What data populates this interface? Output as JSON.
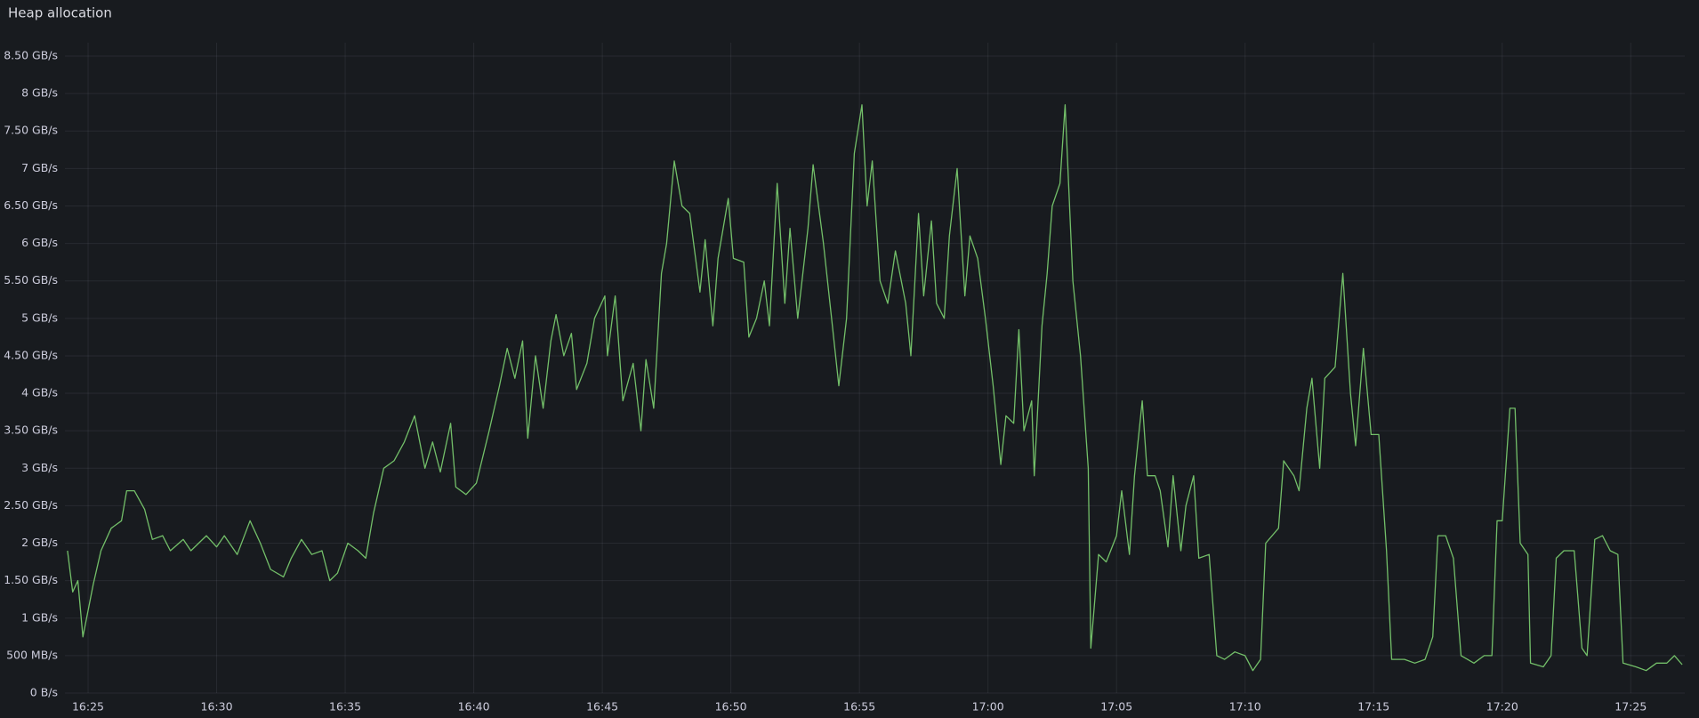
{
  "chart_data": {
    "type": "line",
    "title": "Heap allocation",
    "color": "#73bf69",
    "grid": true,
    "xlim": [
      984.1,
      1047.1
    ],
    "xticks": [
      {
        "value": 985,
        "label": "16:25"
      },
      {
        "value": 990,
        "label": "16:30"
      },
      {
        "value": 995,
        "label": "16:35"
      },
      {
        "value": 1000,
        "label": "16:40"
      },
      {
        "value": 1005,
        "label": "16:45"
      },
      {
        "value": 1010,
        "label": "16:50"
      },
      {
        "value": 1015,
        "label": "16:55"
      },
      {
        "value": 1020,
        "label": "17:00"
      },
      {
        "value": 1025,
        "label": "17:05"
      },
      {
        "value": 1030,
        "label": "17:10"
      },
      {
        "value": 1035,
        "label": "17:15"
      },
      {
        "value": 1040,
        "label": "17:20"
      },
      {
        "value": 1045,
        "label": "17:25"
      }
    ],
    "ylim": [
      0,
      8.7
    ],
    "yticks": [
      {
        "value": 0,
        "label": "0 B/s"
      },
      {
        "value": 0.5,
        "label": "500 MB/s"
      },
      {
        "value": 1,
        "label": "1 GB/s"
      },
      {
        "value": 1.5,
        "label": "1.50 GB/s"
      },
      {
        "value": 2,
        "label": "2 GB/s"
      },
      {
        "value": 2.5,
        "label": "2.50 GB/s"
      },
      {
        "value": 3,
        "label": "3 GB/s"
      },
      {
        "value": 3.5,
        "label": "3.50 GB/s"
      },
      {
        "value": 4,
        "label": "4 GB/s"
      },
      {
        "value": 4.5,
        "label": "4.50 GB/s"
      },
      {
        "value": 5,
        "label": "5 GB/s"
      },
      {
        "value": 5.5,
        "label": "5.50 GB/s"
      },
      {
        "value": 6,
        "label": "6 GB/s"
      },
      {
        "value": 6.5,
        "label": "6.50 GB/s"
      },
      {
        "value": 7,
        "label": "7 GB/s"
      },
      {
        "value": 7.5,
        "label": "7.50 GB/s"
      },
      {
        "value": 8,
        "label": "8 GB/s"
      },
      {
        "value": 8.5,
        "label": "8.50 GB/s"
      }
    ],
    "x": [
      984.2,
      984.4,
      984.6,
      984.8,
      985.2,
      985.5,
      985.9,
      986.3,
      986.5,
      986.8,
      987.2,
      987.5,
      987.9,
      988.2,
      988.7,
      989.0,
      989.6,
      990.0,
      990.3,
      990.8,
      991.3,
      991.7,
      992.1,
      992.6,
      992.9,
      993.3,
      993.7,
      994.1,
      994.4,
      994.7,
      995.1,
      995.5,
      995.8,
      996.1,
      996.5,
      996.9,
      997.3,
      997.7,
      998.1,
      998.4,
      998.7,
      999.1,
      999.3,
      999.7,
      1000.1,
      1000.6,
      1001.0,
      1001.3,
      1001.6,
      1001.9,
      1002.1,
      1002.4,
      1002.7,
      1003.0,
      1003.2,
      1003.5,
      1003.8,
      1004.0,
      1004.4,
      1004.7,
      1005.1,
      1005.2,
      1005.5,
      1005.8,
      1006.2,
      1006.5,
      1006.7,
      1007.0,
      1007.3,
      1007.5,
      1007.8,
      1008.1,
      1008.4,
      1008.8,
      1009.0,
      1009.3,
      1009.5,
      1009.9,
      1010.1,
      1010.5,
      1010.7,
      1011.0,
      1011.3,
      1011.5,
      1011.8,
      1012.1,
      1012.3,
      1012.6,
      1013.0,
      1013.2,
      1013.6,
      1013.9,
      1014.2,
      1014.5,
      1014.8,
      1015.1,
      1015.3,
      1015.5,
      1015.8,
      1016.1,
      1016.4,
      1016.8,
      1017.0,
      1017.3,
      1017.5,
      1017.8,
      1018.0,
      1018.3,
      1018.5,
      1018.8,
      1019.1,
      1019.3,
      1019.6,
      1019.9,
      1020.2,
      1020.5,
      1020.7,
      1021.0,
      1021.2,
      1021.4,
      1021.7,
      1021.8,
      1022.1,
      1022.3,
      1022.5,
      1022.8,
      1023.0,
      1023.3,
      1023.6,
      1023.9,
      1024.0,
      1024.3,
      1024.6,
      1025.0,
      1025.2,
      1025.5,
      1025.7,
      1026.0,
      1026.2,
      1026.5,
      1026.7,
      1027.0,
      1027.2,
      1027.5,
      1027.7,
      1028.0,
      1028.2,
      1028.6,
      1028.9,
      1029.2,
      1029.6,
      1030.0,
      1030.3,
      1030.6,
      1030.8,
      1031.3,
      1031.5,
      1031.9,
      1032.1,
      1032.4,
      1032.6,
      1032.9,
      1033.1,
      1033.5,
      1033.8,
      1034.1,
      1034.3,
      1034.6,
      1034.9,
      1035.2,
      1035.5,
      1035.7,
      1036.2,
      1036.6,
      1037.0,
      1037.3,
      1037.5,
      1037.8,
      1038.1,
      1038.4,
      1038.9,
      1039.3,
      1039.6,
      1039.8,
      1040.0,
      1040.3,
      1040.5,
      1040.7,
      1041.0,
      1041.1,
      1041.6,
      1041.9,
      1042.1,
      1042.4,
      1042.8,
      1043.1,
      1043.3,
      1043.6,
      1043.9,
      1044.2,
      1044.5,
      1044.7,
      1045.2,
      1045.6,
      1046.0,
      1046.4,
      1046.7,
      1047.0
    ],
    "values": [
      1.9,
      1.35,
      1.5,
      0.75,
      1.45,
      1.9,
      2.2,
      2.3,
      2.7,
      2.7,
      2.45,
      2.05,
      2.1,
      1.9,
      2.05,
      1.9,
      2.1,
      1.95,
      2.1,
      1.85,
      2.3,
      2.0,
      1.65,
      1.55,
      1.8,
      2.05,
      1.85,
      1.9,
      1.5,
      1.6,
      2.0,
      1.9,
      1.8,
      2.4,
      3.0,
      3.1,
      3.35,
      3.7,
      3.0,
      3.35,
      2.95,
      3.6,
      2.75,
      2.65,
      2.8,
      3.5,
      4.1,
      4.6,
      4.2,
      4.7,
      3.4,
      4.5,
      3.8,
      4.7,
      5.05,
      4.5,
      4.8,
      4.05,
      4.4,
      5.0,
      5.3,
      4.5,
      5.3,
      3.9,
      4.4,
      3.5,
      4.45,
      3.8,
      5.6,
      6.0,
      7.1,
      6.5,
      6.4,
      5.35,
      6.05,
      4.9,
      5.8,
      6.6,
      5.8,
      5.75,
      4.75,
      5.0,
      5.5,
      4.9,
      6.8,
      5.2,
      6.2,
      5.0,
      6.2,
      7.05,
      6.0,
      5.05,
      4.1,
      5.0,
      7.2,
      7.85,
      6.5,
      7.1,
      5.5,
      5.2,
      5.9,
      5.2,
      4.5,
      6.4,
      5.3,
      6.3,
      5.2,
      5.0,
      6.1,
      7.0,
      5.3,
      6.1,
      5.8,
      5.0,
      4.1,
      3.05,
      3.7,
      3.6,
      4.85,
      3.5,
      3.9,
      2.9,
      4.9,
      5.6,
      6.5,
      6.8,
      7.85,
      5.5,
      4.5,
      3.0,
      0.6,
      1.85,
      1.75,
      2.1,
      2.7,
      1.85,
      2.9,
      3.9,
      2.9,
      2.9,
      2.7,
      1.95,
      2.9,
      1.9,
      2.5,
      2.9,
      1.8,
      1.85,
      0.5,
      0.45,
      0.55,
      0.5,
      0.3,
      0.45,
      2.0,
      2.2,
      3.1,
      2.9,
      2.7,
      3.8,
      4.2,
      3.0,
      4.2,
      4.35,
      5.6,
      4.0,
      3.3,
      4.6,
      3.45,
      3.45,
      1.9,
      0.45,
      0.45,
      0.4,
      0.45,
      0.75,
      2.1,
      2.1,
      1.8,
      0.5,
      0.4,
      0.5,
      0.5,
      2.3,
      2.3,
      3.8,
      3.8,
      2.0,
      1.85,
      0.4,
      0.35,
      0.5,
      1.8,
      1.9,
      1.9,
      0.6,
      0.5,
      2.05,
      2.1,
      1.9,
      1.85,
      0.4,
      0.35,
      0.3,
      0.4,
      0.4,
      0.5,
      0.38
    ]
  }
}
